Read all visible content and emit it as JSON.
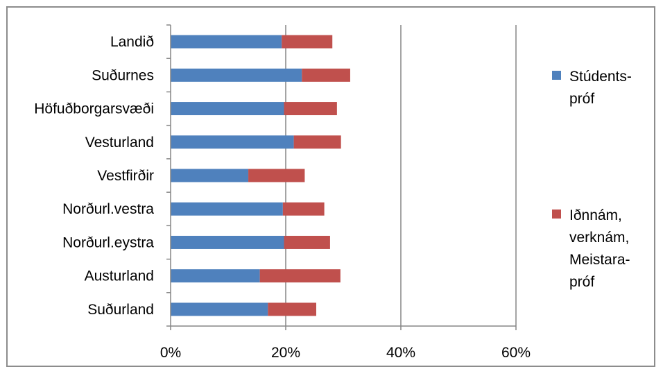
{
  "chart_data": {
    "type": "bar",
    "orientation": "horizontal",
    "stacked": true,
    "categories": [
      "Landið",
      "Suðurnes",
      "Höfuðborgarsvæði",
      "Vesturland",
      "Vestfirðir",
      "Norðurl.vestra",
      "Norðurl.eystra",
      "Austurland",
      "Suðurland"
    ],
    "series": [
      {
        "name": "Stúdentspróf",
        "legend_lines": [
          "Stúdents-",
          "próf"
        ],
        "color": "#4F81BD",
        "values": [
          19.3,
          22.8,
          19.7,
          21.4,
          13.5,
          19.5,
          19.7,
          15.5,
          16.9
        ]
      },
      {
        "name": "Iðnnám, verknám, Meistarapróf",
        "legend_lines": [
          "Iðnnám,",
          "verknám,",
          "Meistara-",
          "próf"
        ],
        "color": "#C0504D",
        "values": [
          8.8,
          8.4,
          9.2,
          8.2,
          9.8,
          7.2,
          8.0,
          14.0,
          8.4
        ]
      }
    ],
    "xlim": [
      0,
      60
    ],
    "xticks": [
      0,
      20,
      40,
      60
    ],
    "xtick_labels": [
      "0%",
      "20%",
      "40%",
      "60%"
    ],
    "grid": "vertical",
    "legend_position": "right"
  }
}
